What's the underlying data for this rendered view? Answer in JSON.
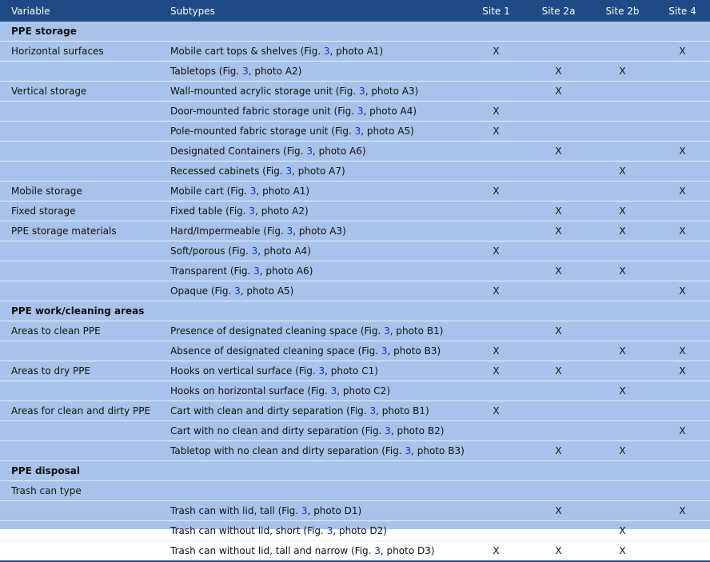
{
  "headers": [
    "Variable",
    "Subtypes",
    "Site 1",
    "Site 2a",
    "Site 2b",
    "Site 4"
  ],
  "mark": "X",
  "rows": [
    {
      "type": "section",
      "label": "PPE storage"
    },
    {
      "type": "row",
      "var": "Horizontal surfaces",
      "pre": "Mobile cart tops & shelves (Fig. ",
      "fig": "3",
      "post": ", photo A1)",
      "s1": "X",
      "s2a": "",
      "s2b": "",
      "s4": "X"
    },
    {
      "type": "row",
      "var": "",
      "pre": "Tabletops (Fig. ",
      "fig": "3",
      "post": ", photo A2)",
      "s1": "",
      "s2a": "X",
      "s2b": "X",
      "s4": ""
    },
    {
      "type": "row",
      "var": "Vertical storage",
      "pre": "Wall-mounted acrylic storage unit (Fig. ",
      "fig": "3",
      "post": ", photo A3)",
      "s1": "",
      "s2a": "X",
      "s2b": "",
      "s4": ""
    },
    {
      "type": "row",
      "var": "",
      "pre": "Door-mounted fabric storage unit (Fig. ",
      "fig": "3",
      "post": ", photo A4)",
      "s1": "X",
      "s2a": "",
      "s2b": "",
      "s4": ""
    },
    {
      "type": "row",
      "var": "",
      "pre": "Pole-mounted fabric storage unit (Fig. ",
      "fig": "3",
      "post": ", photo A5)",
      "s1": "X",
      "s2a": "",
      "s2b": "",
      "s4": ""
    },
    {
      "type": "row",
      "var": "",
      "pre": "Designated Containers (Fig. ",
      "fig": "3",
      "post": ", photo A6)",
      "s1": "",
      "s2a": "X",
      "s2b": "",
      "s4": "X"
    },
    {
      "type": "row",
      "var": "",
      "pre": "Recessed cabinets (Fig. ",
      "fig": "3",
      "post": ", photo A7)",
      "s1": "",
      "s2a": "",
      "s2b": "X",
      "s4": ""
    },
    {
      "type": "row",
      "var": "Mobile storage",
      "pre": "Mobile cart (Fig. ",
      "fig": "3",
      "post": ", photo A1)",
      "s1": "X",
      "s2a": "",
      "s2b": "",
      "s4": "X"
    },
    {
      "type": "row",
      "var": "Fixed storage",
      "pre": "Fixed table (Fig. ",
      "fig": "3",
      "post": ", photo A2)",
      "s1": "",
      "s2a": "X",
      "s2b": "X",
      "s4": ""
    },
    {
      "type": "row",
      "var": "PPE storage materials",
      "pre": "Hard/Impermeable (Fig. ",
      "fig": "3",
      "post": ", photo A3)",
      "s1": "",
      "s2a": "X",
      "s2b": "X",
      "s4": "X"
    },
    {
      "type": "row",
      "var": "",
      "pre": "Soft/porous (Fig. ",
      "fig": "3",
      "post": ", photo A4)",
      "s1": "X",
      "s2a": "",
      "s2b": "",
      "s4": ""
    },
    {
      "type": "row",
      "var": "",
      "pre": "Transparent (Fig. ",
      "fig": "3",
      "post": ", photo A6)",
      "s1": "",
      "s2a": "X",
      "s2b": "X",
      "s4": ""
    },
    {
      "type": "row",
      "var": "",
      "pre": "Opaque (Fig. ",
      "fig": "3",
      "post": ", photo A5)",
      "s1": "X",
      "s2a": "",
      "s2b": "",
      "s4": "X"
    },
    {
      "type": "section",
      "label": "PPE work/cleaning areas"
    },
    {
      "type": "row",
      "var": "Areas to clean PPE",
      "pre": "Presence of designated cleaning space (Fig. ",
      "fig": "3",
      "post": ", photo B1)",
      "s1": "",
      "s2a": "X",
      "s2b": "",
      "s4": ""
    },
    {
      "type": "row",
      "var": "",
      "pre": "Absence of designated cleaning space (Fig. ",
      "fig": "3",
      "post": ", photo B3)",
      "s1": "X",
      "s2a": "",
      "s2b": "X",
      "s4": "X"
    },
    {
      "type": "row",
      "var": "Areas to dry PPE",
      "pre": "Hooks on vertical surface (Fig. ",
      "fig": "3",
      "post": ", photo C1)",
      "s1": "X",
      "s2a": "X",
      "s2b": "",
      "s4": "X"
    },
    {
      "type": "row",
      "var": "",
      "pre": "Hooks on horizontal surface (Fig. ",
      "fig": "3",
      "post": ", photo C2)",
      "s1": "",
      "s2a": "",
      "s2b": "X",
      "s4": ""
    },
    {
      "type": "row",
      "var": "Areas for clean and dirty PPE",
      "pre": "Cart with clean and dirty separation (Fig. ",
      "fig": "3",
      "post": ", photo B1)",
      "s1": "X",
      "s2a": "",
      "s2b": "",
      "s4": ""
    },
    {
      "type": "row",
      "var": "",
      "pre": "Cart with no clean and dirty separation (Fig. ",
      "fig": "3",
      "post": ", photo B2)",
      "s1": "",
      "s2a": "",
      "s2b": "",
      "s4": "X"
    },
    {
      "type": "row",
      "var": "",
      "pre": "Tabletop with no clean and dirty separation (Fig. ",
      "fig": "3",
      "post": ", photo B3)",
      "s1": "",
      "s2a": "X",
      "s2b": "X",
      "s4": ""
    },
    {
      "type": "section",
      "label": "PPE disposal"
    },
    {
      "type": "row",
      "var": "Trash can type",
      "pre": "",
      "fig": "",
      "post": "",
      "s1": "",
      "s2a": "",
      "s2b": "",
      "s4": ""
    },
    {
      "type": "row",
      "var": "",
      "pre": "Trash can with lid, tall (Fig. ",
      "fig": "3",
      "post": ", photo D1)",
      "s1": "",
      "s2a": "X",
      "s2b": "",
      "s4": "X"
    },
    {
      "type": "row",
      "var": "",
      "pre": "Trash can without lid, short (Fig. ",
      "fig": "3",
      "post": ", photo D2)",
      "s1": "",
      "s2a": "",
      "s2b": "X",
      "s4": ""
    },
    {
      "type": "row",
      "var": "",
      "pre": "Trash can without lid, tall and narrow (Fig. ",
      "fig": "3",
      "post": ", photo D3)",
      "s1": "X",
      "s2a": "X",
      "s2b": "X",
      "s4": ""
    }
  ],
  "colors": {
    "header_bg": "#1f4a86",
    "row_bg": "#a7c3ea",
    "ref_link": "#1a2fb5"
  }
}
